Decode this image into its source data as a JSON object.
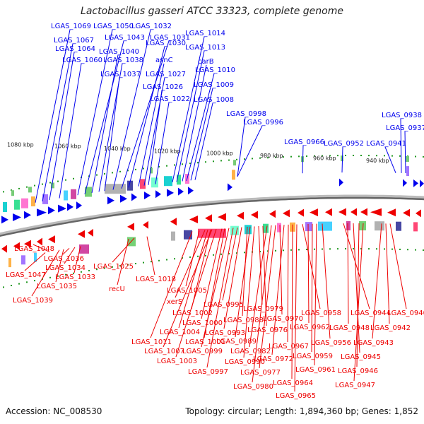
{
  "title": "Lactobacillus gasseri ATCC 33323, complete genome",
  "footer": {
    "accession": "Accession: NC_008530",
    "summary": "Topology: circular; Length: 1,894,360 bp; Genes: 1,852"
  },
  "colors": {
    "forward": "#0000ee",
    "reverse": "#ee0000",
    "backbone": "#888888",
    "tick": "#229922"
  },
  "kbp_labels": [
    "1080 kbp",
    "1060 kbp",
    "1040 kbp",
    "1020 kbp",
    "1000 kbp",
    "980 kbp",
    "960 kbp",
    "940 kbp"
  ],
  "forward_genes": [
    "LGAS_1069",
    "LGAS_1067",
    "LGAS_1064",
    "LGAS_1060",
    "LGAS_1050",
    "LGAS_1043",
    "LGAS_1040",
    "LGAS_1038",
    "LGAS_1037",
    "LGAS_1032",
    "LGAS_1031",
    "LGAS_1030",
    "asnC",
    "LGAS_1027",
    "LGAS_1026",
    "LGAS_1022",
    "LGAS_1014",
    "LGAS_1013",
    "carB",
    "LGAS_1010",
    "LGAS_1009",
    "LGAS_1008",
    "LGAS_0998",
    "LGAS_0996",
    "LGAS_0966",
    "LGAS_0952",
    "LGAS_0941",
    "LGAS_0938",
    "LGAS_0937"
  ],
  "reverse_genes": [
    "LGAS_1048",
    "LGAS_1047",
    "LGAS_1036",
    "LGAS_1034",
    "LGAS_1035",
    "LGAS_1033",
    "LGAS_1039",
    "LGAS_1025",
    "recU",
    "LGAS_1018",
    "LGAS_1005",
    "xerS",
    "LGAS_1002",
    "LGAS_1004",
    "LGAS_1011",
    "LGAS_1007",
    "LGAS_1003",
    "LGAS_1000",
    "LGAS_1001",
    "LGAS_0999",
    "LGAS_0997",
    "LGAS_0995",
    "LGAS_0993",
    "LGAS_0988",
    "LGAS_0989",
    "LGAS_0990",
    "LGAS_0979",
    "LGAS_0976",
    "LGAS_0982",
    "LGAS_0980",
    "LGAS_0977",
    "LGAS_0970",
    "LGAS_0972",
    "LGAS_0967",
    "LGAS_0964",
    "LGAS_0965",
    "LGAS_0958",
    "LGAS_0962",
    "LGAS_0959",
    "LGAS_0961",
    "LGAS_0956",
    "LGAS_0944",
    "LGAS_0948",
    "LGAS_0945",
    "LGAS_0946",
    "LGAS_0947",
    "LGAS_0940",
    "LGAS_0942",
    "LGAS_0943"
  ]
}
